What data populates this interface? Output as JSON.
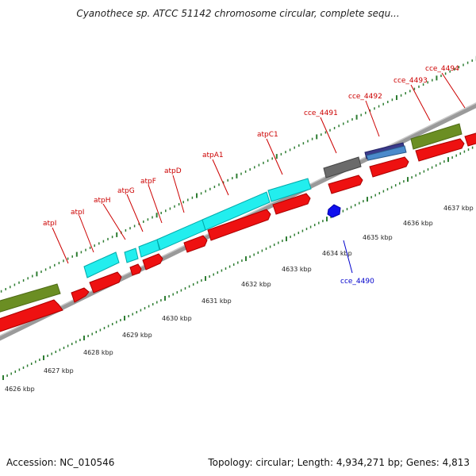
{
  "title": "Cyanothece sp. ATCC 51142 chromosome circular, complete sequ...",
  "footer": {
    "accession": "Accession: NC_010546",
    "summary": "Topology: circular; Length: 4,934,271 bp; Genes: 4,813"
  },
  "colors": {
    "label_red": "#cc0000",
    "label_blue": "#0000cc",
    "cds_red": "#ee1111",
    "cyan_feature": "#22eeee",
    "olive_feature": "#6b8e23",
    "gray_feature": "#6a6a6a",
    "navy_feature": "#3a3a8a",
    "steelblue_feature": "#4a8acb",
    "backbone": "#8a8a8a",
    "tick_green": "#2e7d32",
    "blue_marker": "#1010ee"
  },
  "ruler": {
    "unit": "kbp",
    "ticks": [
      "4626 kbp",
      "4627 kbp",
      "4628 kbp",
      "4629 kbp",
      "4630 kbp",
      "4631 kbp",
      "4632 kbp",
      "4633 kbp",
      "4634 kbp",
      "4635 kbp",
      "4636 kbp",
      "4637 kbp"
    ]
  },
  "genes": [
    {
      "label": "atpI",
      "color": "label_red"
    },
    {
      "label": "atpI",
      "color": "label_red"
    },
    {
      "label": "atpH",
      "color": "label_red"
    },
    {
      "label": "atpG",
      "color": "label_red"
    },
    {
      "label": "atpF",
      "color": "label_red"
    },
    {
      "label": "atpD",
      "color": "label_red"
    },
    {
      "label": "atpA1",
      "color": "label_red"
    },
    {
      "label": "atpC1",
      "color": "label_red"
    },
    {
      "label": "cce_4491",
      "color": "label_red"
    },
    {
      "label": "cce_4492",
      "color": "label_red"
    },
    {
      "label": "cce_4493",
      "color": "label_red"
    },
    {
      "label": "cce_4494",
      "color": "label_red"
    },
    {
      "label": "cce_4490",
      "color": "label_blue"
    }
  ]
}
